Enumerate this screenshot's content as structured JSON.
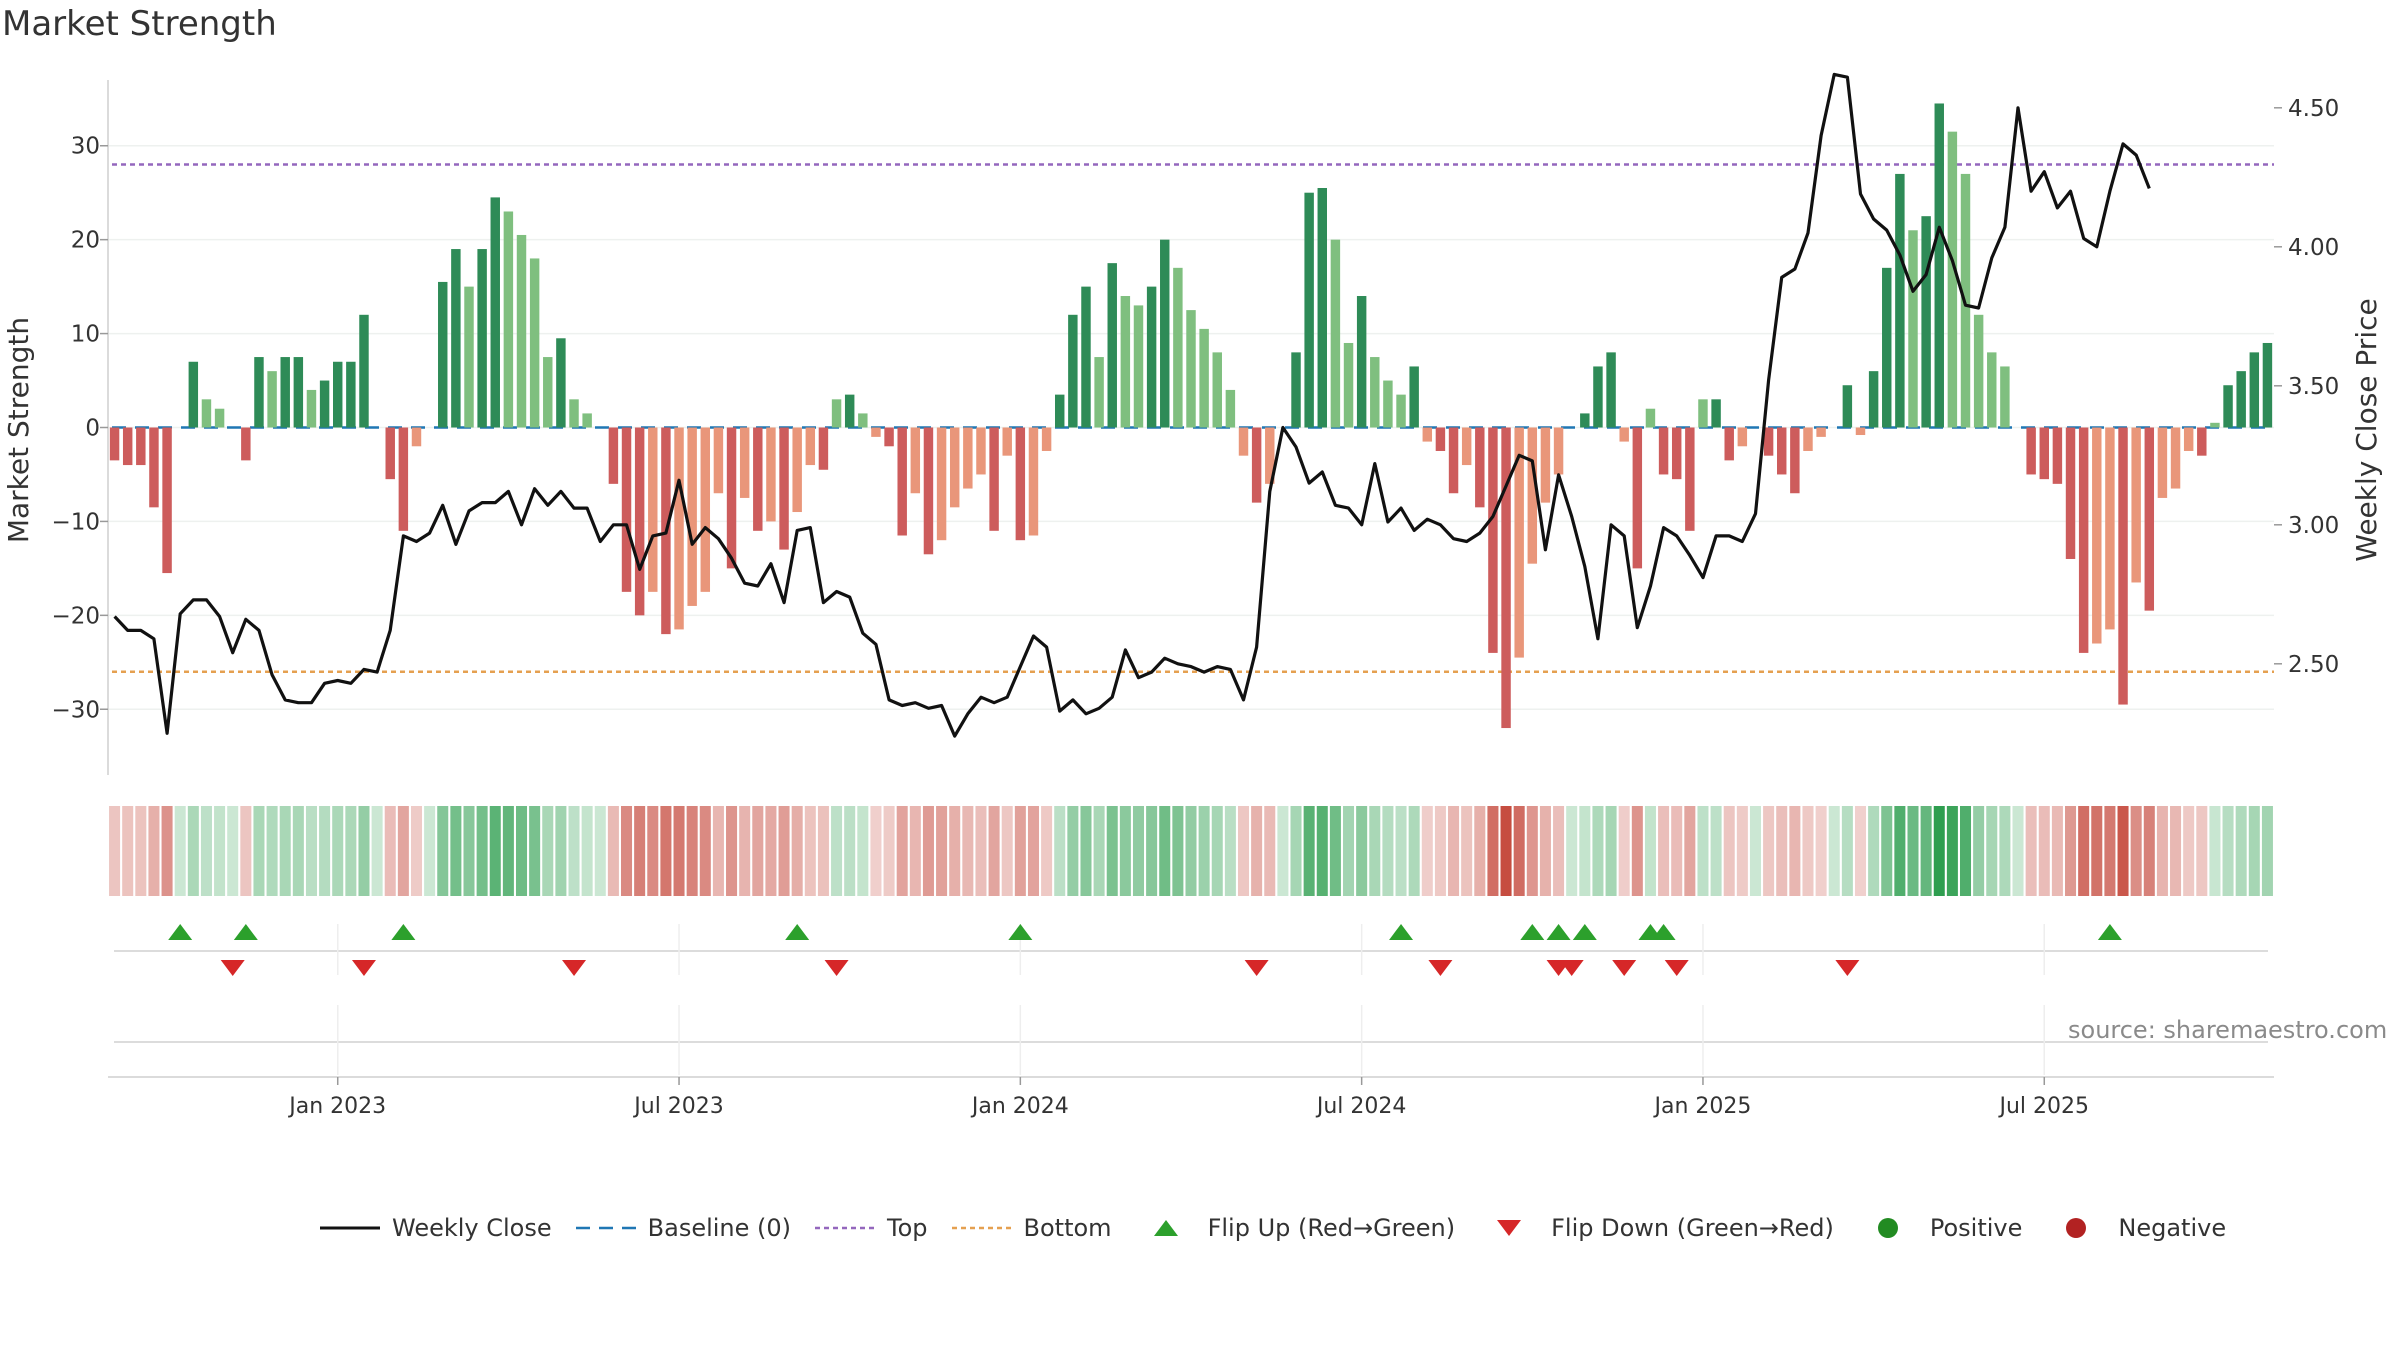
{
  "title": "Market Strength",
  "source": "source: sharemaestro.com",
  "colors": {
    "positive_strong": "#2e8b57",
    "positive_light": "#7fbf7f",
    "negative_strong": "#cd5c5c",
    "negative_light": "#e9967a",
    "line": "#111111",
    "baseline": "#1f77b4",
    "top": "#9467bd",
    "bottom": "#e5a050",
    "flip_up": "#2ca02c",
    "flip_down": "#d62728",
    "legend_positive": "#228b22",
    "legend_negative": "#b22222"
  },
  "legend": [
    {
      "key": "line",
      "label": "Weekly Close"
    },
    {
      "key": "baseline",
      "label": "Baseline (0)"
    },
    {
      "key": "top",
      "label": "Top"
    },
    {
      "key": "bottom",
      "label": "Bottom"
    },
    {
      "key": "flip_up",
      "label": "Flip Up (Red→Green)"
    },
    {
      "key": "flip_down",
      "label": "Flip Down (Green→Red)"
    },
    {
      "key": "positive",
      "label": "Positive"
    },
    {
      "key": "negative",
      "label": "Negative"
    }
  ],
  "chart_data": {
    "type": "bar",
    "ylabel_left": "Market Strength",
    "ylabel_right": "Weekly Close Price",
    "ylim_left": [
      -37,
      37
    ],
    "ylim_right": [
      2.1,
      4.6
    ],
    "left_ticks": [
      30,
      20,
      10,
      0,
      -10,
      -20,
      -30
    ],
    "left_tick_labels": [
      "30",
      "20",
      "10",
      "0",
      "−10",
      "−20",
      "−30"
    ],
    "right_ticks": [
      4.5,
      4.0,
      3.5,
      3.0,
      2.5
    ],
    "right_tick_labels": [
      "4.50",
      "4.00",
      "3.50",
      "3.00",
      "2.50"
    ],
    "top_level": 28,
    "bottom_level": -26,
    "baseline": 0,
    "x_ticks": [
      {
        "week": 17,
        "label": "Jan 2023"
      },
      {
        "week": 43,
        "label": "Jul 2023"
      },
      {
        "week": 69,
        "label": "Jan 2024"
      },
      {
        "week": 95,
        "label": "Jul 2024"
      },
      {
        "week": 121,
        "label": "Jan 2025"
      },
      {
        "week": 147,
        "label": "Jul 2025"
      }
    ],
    "strength": [
      -3.5,
      -4,
      -4,
      -8.5,
      -15.5,
      0,
      7,
      3,
      2,
      0,
      -3.5,
      7.5,
      6,
      7.5,
      7.5,
      4,
      5,
      7,
      7,
      12,
      0,
      -5.5,
      -11,
      -2,
      0,
      15.5,
      19,
      15,
      19,
      24.5,
      23,
      20.5,
      18,
      7.5,
      9.5,
      3,
      1.5,
      0,
      -6,
      -17.5,
      -20,
      -17.5,
      -22,
      -21.5,
      -19,
      -17.5,
      -7,
      -15,
      -7.5,
      -11,
      -10,
      -13,
      -9,
      -4,
      -4.5,
      3,
      3.5,
      1.5,
      -1,
      -2,
      -11.5,
      -7,
      -13.5,
      -12,
      -8.5,
      -6.5,
      -5,
      -11,
      -3,
      -12,
      -11.5,
      -2.5,
      3.5,
      12,
      15,
      7.5,
      17.5,
      14,
      13,
      15,
      20,
      17,
      12.5,
      10.5,
      8,
      4,
      -3,
      -8,
      -6,
      0,
      8,
      25,
      25.5,
      20,
      9,
      14,
      7.5,
      5,
      3.5,
      6.5,
      -1.5,
      -2.5,
      -7,
      -4,
      -8.5,
      -24,
      -32,
      -24.5,
      -14.5,
      -8,
      -5,
      0,
      1.5,
      6.5,
      8,
      -1.5,
      -15,
      2,
      -5,
      -5.5,
      -11,
      3,
      3,
      -3.5,
      -2,
      0,
      -3,
      -5,
      -7,
      -2.5,
      -1,
      0,
      4.5,
      -0.8,
      6,
      17,
      27,
      21,
      22.5,
      34.5,
      31.5,
      27,
      12,
      8,
      6.5,
      0,
      -5,
      -5.5,
      -6,
      -14,
      -24,
      -23,
      -21.5,
      -29.5,
      -16.5,
      -19.5,
      -7.5,
      -6.5,
      -2.5,
      -3,
      0.5,
      4.5,
      6,
      8,
      9
    ],
    "close": [
      2.67,
      2.62,
      2.62,
      2.59,
      2.25,
      2.68,
      2.73,
      2.73,
      2.67,
      2.54,
      2.66,
      2.62,
      2.46,
      2.37,
      2.36,
      2.36,
      2.43,
      2.44,
      2.43,
      2.48,
      2.47,
      2.62,
      2.96,
      2.94,
      2.97,
      3.07,
      2.93,
      3.05,
      3.08,
      3.08,
      3.12,
      3.0,
      3.13,
      3.07,
      3.12,
      3.06,
      3.06,
      2.94,
      3.0,
      3.0,
      2.84,
      2.96,
      2.97,
      3.16,
      2.93,
      2.99,
      2.95,
      2.88,
      2.79,
      2.78,
      2.86,
      2.72,
      2.98,
      2.99,
      2.72,
      2.76,
      2.74,
      2.61,
      2.57,
      2.37,
      2.35,
      2.36,
      2.34,
      2.35,
      2.24,
      2.32,
      2.38,
      2.36,
      2.38,
      2.49,
      2.6,
      2.56,
      2.33,
      2.37,
      2.32,
      2.34,
      2.38,
      2.55,
      2.45,
      2.47,
      2.52,
      2.5,
      2.49,
      2.47,
      2.49,
      2.48,
      2.37,
      2.56,
      3.12,
      3.35,
      3.28,
      3.15,
      3.19,
      3.07,
      3.06,
      3.0,
      3.22,
      3.01,
      3.06,
      2.98,
      3.02,
      3.0,
      2.95,
      2.94,
      2.97,
      3.03,
      3.14,
      3.25,
      3.23,
      2.91,
      3.18,
      3.03,
      2.85,
      2.59,
      3.0,
      2.96,
      2.63,
      2.78,
      2.99,
      2.96,
      2.89,
      2.81,
      2.96,
      2.96,
      2.94,
      3.04,
      3.52,
      3.89,
      3.92,
      4.05,
      4.4,
      4.62,
      4.61,
      4.19,
      4.1,
      4.06,
      3.97,
      3.84,
      3.9,
      4.07,
      3.95,
      3.79,
      3.78,
      3.96,
      4.07,
      4.5,
      4.2,
      4.27,
      4.14,
      4.2,
      4.03,
      4.0,
      4.2,
      4.37,
      4.33,
      4.21
    ],
    "flip_up_weeks": [
      5,
      10,
      22,
      52,
      69,
      98,
      108,
      110,
      112,
      117,
      118,
      152
    ],
    "flip_down_weeks": [
      9,
      19,
      35,
      55,
      87,
      101,
      110,
      111,
      115,
      119,
      132
    ]
  }
}
